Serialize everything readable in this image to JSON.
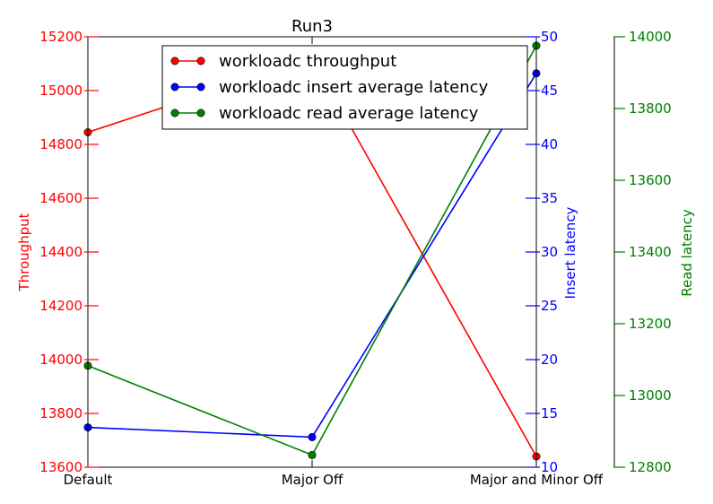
{
  "chart_data": {
    "type": "line",
    "title": "Run3",
    "categories": [
      "Default",
      "Major Off",
      "Major and Minor Off"
    ],
    "axes": {
      "throughput": {
        "label": "Throughput",
        "side": "left",
        "color": "#ff0000",
        "ylim": [
          13600,
          15200
        ],
        "ticks": [
          13600,
          13800,
          14000,
          14200,
          14400,
          14600,
          14800,
          15000,
          15200
        ]
      },
      "insert": {
        "label": "Insert latency",
        "side": "right",
        "color": "#0000ff",
        "ylim": [
          10,
          50
        ],
        "ticks": [
          10,
          15,
          20,
          25,
          30,
          35,
          40,
          45,
          50
        ]
      },
      "read": {
        "label": "Read latency",
        "side": "right-offset",
        "color": "#008000",
        "ylim": [
          12800,
          14000
        ],
        "ticks": [
          12800,
          13000,
          13200,
          13400,
          13600,
          13800,
          14000
        ]
      }
    },
    "series": [
      {
        "name": "workloadc throughput",
        "axis": "throughput",
        "color": "#ff0000",
        "values": [
          14845,
          15120,
          13640
        ]
      },
      {
        "name": "workloadc insert average latency",
        "axis": "insert",
        "color": "#0000ff",
        "values": [
          13.7,
          12.8,
          46.6
        ]
      },
      {
        "name": "workloadc read average latency",
        "axis": "read",
        "color": "#008000",
        "values": [
          13083,
          12834,
          13975
        ]
      }
    ],
    "legend_position": "top-center",
    "grid": false
  }
}
